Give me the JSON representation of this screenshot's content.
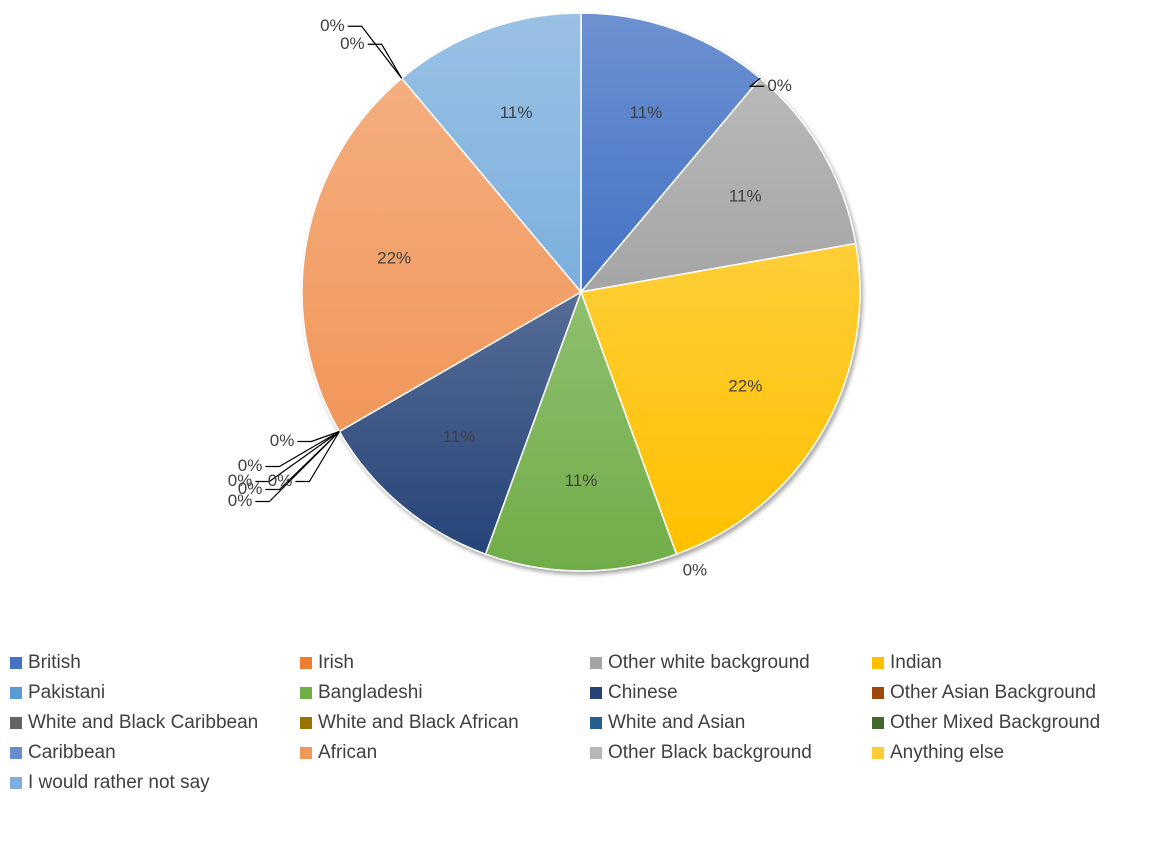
{
  "chart_data": {
    "type": "pie",
    "categories": [
      "British",
      "Irish",
      "Other white background",
      "Indian",
      "Pakistani",
      "Bangladeshi",
      "Chinese",
      "Other Asian Background",
      "White and Black Caribbean",
      "White and Black African",
      "White and Asian",
      "Other Mixed Background",
      "Caribbean",
      "African",
      "Other Black background",
      "Anything else",
      "I would rather not say"
    ],
    "values": [
      11,
      0,
      11,
      22,
      0,
      11,
      11,
      0,
      0,
      0,
      0,
      0,
      0,
      22,
      0,
      0,
      11
    ],
    "data_labels": [
      "11%",
      "0%",
      "11%",
      "22%",
      "0%",
      "11%",
      "11%",
      "0%",
      "0%",
      "0%",
      "0%",
      "0%",
      "0%",
      "22%",
      "0%",
      "0%",
      "11%"
    ],
    "colors": [
      "#4472C4",
      "#ED7D31",
      "#A5A5A5",
      "#FFC000",
      "#5B9BD5",
      "#70AD47",
      "#264478",
      "#9E480E",
      "#636363",
      "#997300",
      "#255E91",
      "#43682B",
      "#698ED0",
      "#F1975A",
      "#B7B7B7",
      "#FFCD33",
      "#7CAFDD"
    ],
    "legend_position": "bottom",
    "title": ""
  }
}
